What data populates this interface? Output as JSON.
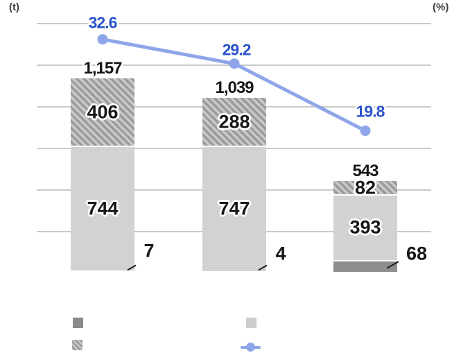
{
  "chart_data": {
    "type": "bar",
    "subtype": "stacked-bar-with-line-overlay",
    "left_axis_unit": "(t)",
    "right_axis_unit": "(%)",
    "categories": [
      "",
      "",
      ""
    ],
    "bar_totals": {
      "values": [
        1157,
        1039,
        543
      ],
      "labels": [
        "1,157",
        "1,039",
        "543"
      ]
    },
    "bar_series": [
      {
        "name": "bottom-solid-dark",
        "style": "solid-dark",
        "color": "#8e8e8e",
        "values": [
          7,
          4,
          68
        ],
        "labels": [
          "7",
          "4",
          "68"
        ],
        "label_placement": "outside-right-with-leader"
      },
      {
        "name": "middle-solid-light",
        "style": "solid-light",
        "color": "#d2d2d2",
        "values": [
          744,
          747,
          393
        ],
        "labels": [
          "744",
          "747",
          "393"
        ],
        "label_placement": "inside"
      },
      {
        "name": "top-hatched",
        "style": "hatch",
        "color": "#c9c9c9",
        "stripe_color": "#9b9b9b",
        "values": [
          406,
          288,
          82
        ],
        "labels": [
          "406",
          "288",
          "82"
        ],
        "label_placement": "inside"
      }
    ],
    "line_series": {
      "name": "percent-line",
      "values": [
        32.6,
        29.2,
        19.8
      ],
      "labels": [
        "32.6",
        "29.2",
        "19.8"
      ],
      "color": "#8ea6e9",
      "label_color": "#2a53cb"
    },
    "axes": {
      "gridline_count": 6,
      "gridline_color": "#c9c9c9",
      "grid_on": true
    },
    "legend": {
      "position": "bottom",
      "items": [
        {
          "swatch": "solid-dark-square",
          "label": ""
        },
        {
          "swatch": "solid-light-square",
          "label": ""
        },
        {
          "swatch": "hatched-square",
          "label": ""
        },
        {
          "swatch": "blue-line-marker",
          "label": ""
        }
      ]
    },
    "colors": {
      "background": "#ffffff",
      "value_text": "#161616",
      "line_label_text": "#2a53cb"
    }
  }
}
